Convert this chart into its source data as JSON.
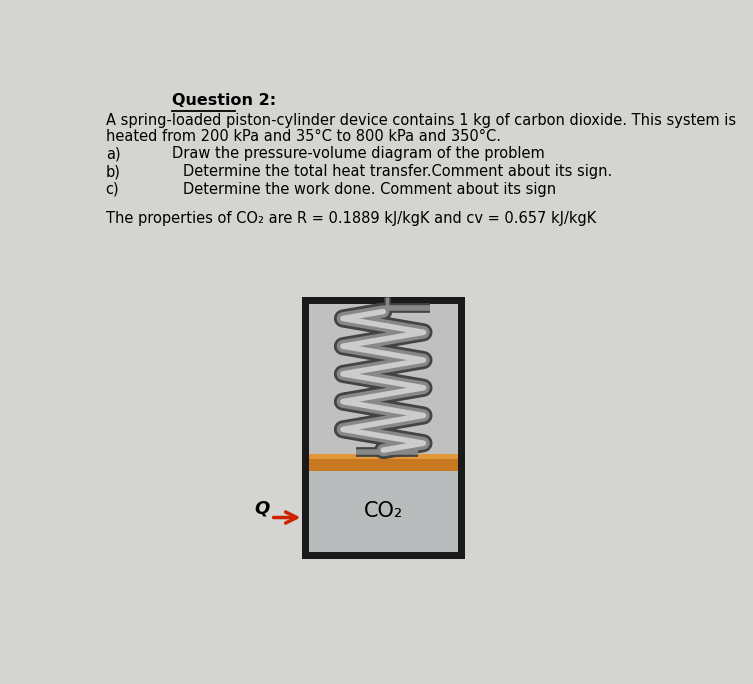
{
  "title": "Question 2:",
  "line1": "A spring-loaded piston-cylinder device contains 1 kg of carbon dioxide. This system is",
  "line2": "heated from 200 kPa and 35°C to 800 kPa and 350°C.",
  "item_a_label": "a)",
  "item_a_text": "Draw the pressure-volume diagram of the problem",
  "item_b_label": "b)",
  "item_b_text": "Determine the total heat transfer.Comment about its sign.",
  "item_c_label": "c)",
  "item_c_text": "Determine the work done. Comment about its sign",
  "properties_line": "The properties of CO₂ are R = 0.1889 kJ/kgK and cv = 0.657 kJ/kgK",
  "co2_label": "CO₂",
  "q_label": "Q",
  "bg_color": "#d4d4d0",
  "arrow_color": "#cc2200",
  "cylinder_border": "#1a1a1a",
  "cylinder_inner": "#c8c8c8",
  "piston_color": "#c87820",
  "piston_highlight": "#e09838",
  "gas_color": "#b8bcbc",
  "spring_dark": "#444444",
  "spring_mid": "#888888",
  "spring_light": "#cccccc"
}
